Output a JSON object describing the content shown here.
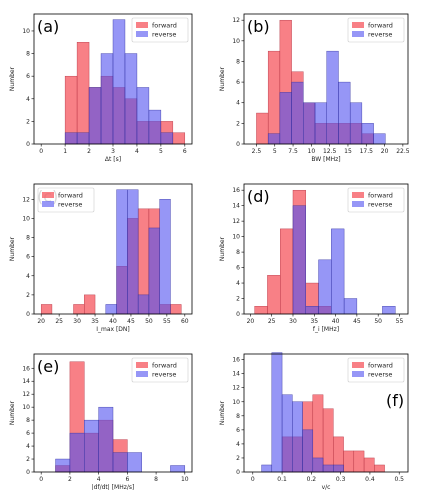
{
  "colors": {
    "forward": "#f5555d",
    "reverse": "#5050f0",
    "overlap": "#9a2ac8",
    "frame": "#000000"
  },
  "chart_data": [
    {
      "type": "bar",
      "panel_label": "(a)",
      "legend_loc": "top-right",
      "xlabel": "Δt [s]",
      "ylabel": "Number",
      "xlim": [
        -0.3,
        6.3
      ],
      "ylim": [
        0,
        11.5
      ],
      "xticks": [
        0,
        1,
        2,
        3,
        4,
        5,
        6
      ],
      "yticks": [
        0,
        2,
        4,
        6,
        8,
        10
      ],
      "series": [
        {
          "name": "forward",
          "bins": [
            [
              0.5,
              1
            ],
            [
              1,
              1.5
            ],
            [
              1.5,
              2
            ],
            [
              2,
              2.5
            ],
            [
              2.5,
              3
            ],
            [
              3,
              3.5
            ],
            [
              3.5,
              4
            ],
            [
              4,
              4.5
            ],
            [
              4.5,
              5
            ],
            [
              5,
              5.5
            ],
            [
              5.5,
              6
            ]
          ],
          "values": [
            0,
            6,
            9,
            5,
            6,
            5,
            4,
            2,
            2,
            2,
            1
          ]
        },
        {
          "name": "reverse",
          "bins": [
            [
              0.5,
              1
            ],
            [
              1,
              1.5
            ],
            [
              1.5,
              2
            ],
            [
              2,
              2.5
            ],
            [
              2.5,
              3
            ],
            [
              3,
              3.5
            ],
            [
              3.5,
              4
            ],
            [
              4,
              4.5
            ],
            [
              4.5,
              5
            ],
            [
              5,
              5.5
            ],
            [
              5.5,
              6
            ]
          ],
          "values": [
            0,
            1,
            1,
            5,
            8,
            11,
            8,
            5,
            3,
            1,
            0
          ]
        }
      ]
    },
    {
      "type": "bar",
      "panel_label": "(b)",
      "legend_loc": "top-right",
      "xlabel": "BW [MHz]",
      "ylabel": "Number",
      "xlim": [
        0.8,
        23.2
      ],
      "ylim": [
        0,
        12.6
      ],
      "xticks": [
        2.5,
        5.0,
        7.5,
        10.0,
        12.5,
        15.0,
        17.5,
        20.0,
        22.5
      ],
      "yticks": [
        0,
        2,
        4,
        6,
        8,
        10,
        12
      ],
      "series": [
        {
          "name": "forward",
          "bins": [
            [
              2.5,
              4.1
            ],
            [
              4.1,
              5.7
            ],
            [
              5.7,
              7.3
            ],
            [
              7.3,
              8.9
            ],
            [
              8.9,
              10.5
            ],
            [
              10.5,
              12.1
            ],
            [
              12.1,
              13.7
            ],
            [
              13.7,
              15.3
            ],
            [
              15.3,
              16.9
            ],
            [
              16.9,
              18.5
            ],
            [
              18.5,
              20.1
            ]
          ],
          "values": [
            3,
            9,
            12,
            7,
            4,
            2,
            2,
            2,
            2,
            1,
            0
          ]
        },
        {
          "name": "reverse",
          "bins": [
            [
              2.5,
              4.1
            ],
            [
              4.1,
              5.7
            ],
            [
              5.7,
              7.3
            ],
            [
              7.3,
              8.9
            ],
            [
              8.9,
              10.5
            ],
            [
              10.5,
              12.1
            ],
            [
              12.1,
              13.7
            ],
            [
              13.7,
              15.3
            ],
            [
              15.3,
              16.9
            ],
            [
              16.9,
              18.5
            ],
            [
              18.5,
              20.1
            ]
          ],
          "values": [
            0,
            1,
            5,
            6,
            4,
            4,
            9,
            6,
            4,
            2,
            1
          ]
        }
      ]
    },
    {
      "type": "bar",
      "panel_label": "(c)",
      "legend_loc": "top-left",
      "xlabel": "I_max [DN]",
      "ylabel": "Number",
      "xlim": [
        18,
        62
      ],
      "ylim": [
        0,
        13.6
      ],
      "xticks": [
        20,
        25,
        30,
        35,
        40,
        45,
        50,
        55,
        60
      ],
      "yticks": [
        0,
        2,
        4,
        6,
        8,
        10,
        12
      ],
      "series": [
        {
          "name": "forward",
          "bins": [
            [
              20,
              23
            ],
            [
              23,
              26
            ],
            [
              26,
              29
            ],
            [
              29,
              32
            ],
            [
              32,
              35
            ],
            [
              35,
              38
            ],
            [
              38,
              41
            ],
            [
              41,
              44
            ],
            [
              44,
              47
            ],
            [
              47,
              50
            ],
            [
              50,
              53
            ],
            [
              53,
              56
            ],
            [
              56,
              59
            ]
          ],
          "values": [
            1,
            0,
            0,
            1,
            2,
            0,
            0,
            5,
            10,
            11,
            11,
            1,
            1
          ]
        },
        {
          "name": "reverse",
          "bins": [
            [
              20,
              23
            ],
            [
              23,
              26
            ],
            [
              26,
              29
            ],
            [
              29,
              32
            ],
            [
              32,
              35
            ],
            [
              35,
              38
            ],
            [
              38,
              41
            ],
            [
              41,
              44
            ],
            [
              44,
              47
            ],
            [
              47,
              50
            ],
            [
              50,
              53
            ],
            [
              53,
              56
            ],
            [
              56,
              59
            ]
          ],
          "values": [
            0,
            0,
            0,
            0,
            0,
            0,
            1,
            13,
            13,
            2,
            9,
            12,
            0
          ]
        }
      ]
    },
    {
      "type": "bar",
      "panel_label": "(d)",
      "legend_loc": "top-right",
      "xlabel": "f_i [MHz]",
      "ylabel": "Number",
      "xlim": [
        18.5,
        57
      ],
      "ylim": [
        0,
        16.8
      ],
      "xticks": [
        20,
        25,
        30,
        35,
        40,
        45,
        50,
        55
      ],
      "yticks": [
        0,
        2,
        4,
        6,
        8,
        10,
        12,
        14,
        16
      ],
      "series": [
        {
          "name": "forward",
          "bins": [
            [
              21,
              24
            ],
            [
              24,
              27
            ],
            [
              27,
              30
            ],
            [
              30,
              33
            ],
            [
              33,
              36
            ],
            [
              36,
              39
            ],
            [
              39,
              42
            ],
            [
              42,
              45
            ],
            [
              45,
              48
            ],
            [
              48,
              51
            ],
            [
              51,
              54
            ]
          ],
          "values": [
            1,
            5,
            11,
            16,
            4,
            1,
            0,
            0,
            0,
            0,
            0
          ]
        },
        {
          "name": "reverse",
          "bins": [
            [
              21,
              24
            ],
            [
              24,
              27
            ],
            [
              27,
              30
            ],
            [
              30,
              33
            ],
            [
              33,
              36
            ],
            [
              36,
              39
            ],
            [
              39,
              42
            ],
            [
              42,
              45
            ],
            [
              45,
              48
            ],
            [
              48,
              51
            ],
            [
              51,
              54
            ]
          ],
          "values": [
            0,
            0,
            0,
            14,
            1,
            7,
            11,
            2,
            0,
            0,
            1
          ]
        }
      ]
    },
    {
      "type": "bar",
      "panel_label": "(e)",
      "legend_loc": "top-right",
      "xlabel": "|df/dt| [MHz/s]",
      "ylabel": "Number",
      "xlim": [
        -0.5,
        10.5
      ],
      "ylim": [
        0,
        18.2
      ],
      "xticks": [
        0,
        2,
        4,
        6,
        8,
        10
      ],
      "yticks": [
        0,
        2,
        4,
        6,
        8,
        10,
        12,
        14,
        16
      ],
      "series": [
        {
          "name": "forward",
          "bins": [
            [
              1,
              2
            ],
            [
              2,
              3
            ],
            [
              3,
              4
            ],
            [
              4,
              5
            ],
            [
              5,
              6
            ],
            [
              6,
              7
            ],
            [
              7,
              8
            ],
            [
              8,
              9
            ],
            [
              9,
              10
            ]
          ],
          "values": [
            1,
            17,
            6,
            8,
            5,
            0,
            0,
            0,
            0
          ]
        },
        {
          "name": "reverse",
          "bins": [
            [
              1,
              2
            ],
            [
              2,
              3
            ],
            [
              3,
              4
            ],
            [
              4,
              5
            ],
            [
              5,
              6
            ],
            [
              6,
              7
            ],
            [
              7,
              8
            ],
            [
              8,
              9
            ],
            [
              9,
              10
            ]
          ],
          "values": [
            2,
            6,
            8,
            10,
            3,
            3,
            0,
            0,
            1
          ]
        }
      ]
    },
    {
      "type": "bar",
      "panel_label": "(f)",
      "legend_loc": "top-right",
      "xlabel": "v/c",
      "ylabel": "Number",
      "xlim": [
        -0.03,
        0.53
      ],
      "ylim": [
        0,
        16.8
      ],
      "xticks": [
        0.0,
        0.1,
        0.2,
        0.3,
        0.4,
        0.5
      ],
      "yticks": [
        0,
        2,
        4,
        6,
        8,
        10,
        12,
        14,
        16
      ],
      "series": [
        {
          "name": "forward",
          "bins": [
            [
              0.03,
              0.065
            ],
            [
              0.065,
              0.1
            ],
            [
              0.1,
              0.135
            ],
            [
              0.135,
              0.17
            ],
            [
              0.17,
              0.205
            ],
            [
              0.205,
              0.24
            ],
            [
              0.24,
              0.275
            ],
            [
              0.275,
              0.31
            ],
            [
              0.31,
              0.345
            ],
            [
              0.345,
              0.38
            ],
            [
              0.38,
              0.415
            ],
            [
              0.415,
              0.45
            ]
          ],
          "values": [
            0,
            0,
            5,
            5,
            10,
            11,
            9,
            5,
            3,
            3,
            2,
            1
          ]
        },
        {
          "name": "reverse",
          "bins": [
            [
              0.03,
              0.065
            ],
            [
              0.065,
              0.1
            ],
            [
              0.1,
              0.135
            ],
            [
              0.135,
              0.17
            ],
            [
              0.17,
              0.205
            ],
            [
              0.205,
              0.24
            ],
            [
              0.24,
              0.275
            ],
            [
              0.275,
              0.31
            ],
            [
              0.31,
              0.345
            ],
            [
              0.345,
              0.38
            ],
            [
              0.38,
              0.415
            ],
            [
              0.415,
              0.45
            ]
          ],
          "values": [
            1,
            17,
            11,
            10,
            6,
            2,
            1,
            1,
            0,
            0,
            0,
            0
          ]
        }
      ]
    }
  ]
}
